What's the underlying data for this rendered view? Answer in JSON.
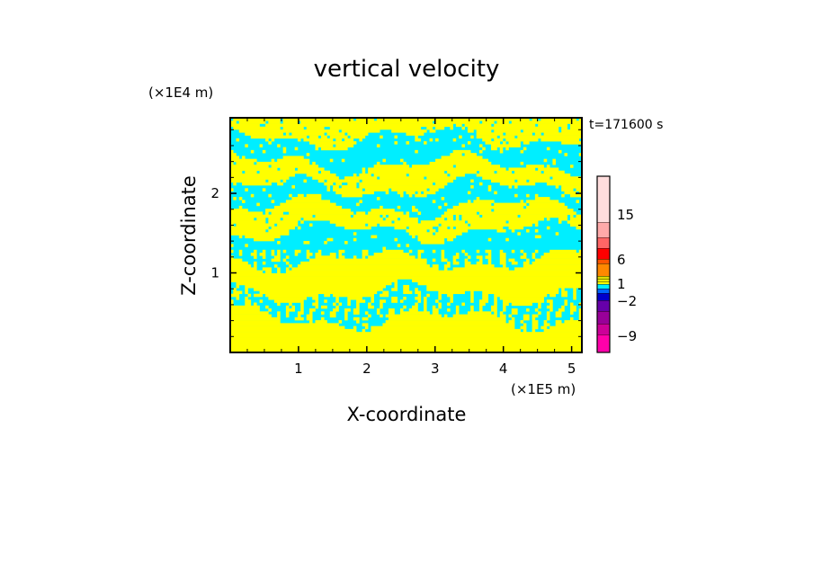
{
  "chart_data": {
    "type": "heatmap",
    "title": "vertical velocity",
    "xlabel": "X-coordinate",
    "ylabel": "Z-coordinate",
    "x_unit": "(×1E5 m)",
    "y_unit": "(×1E4 m)",
    "time_label": "t=171600 s",
    "xlim": [
      0,
      5.15
    ],
    "ylim": [
      0,
      2.95
    ],
    "x_ticks": [
      1,
      2,
      3,
      4,
      5
    ],
    "y_ticks": [
      1,
      2
    ],
    "legend": {
      "placement": "right",
      "tick_labels": [
        "15",
        "6",
        "1",
        "−2",
        "−9"
      ],
      "colors": [
        "#ff00aa",
        "#cc0099",
        "#990099",
        "#6600aa",
        "#0000cc",
        "#0066ff",
        "#00eeff",
        "#ffff00",
        "#eeee00",
        "#dddd00",
        "#ff8800",
        "#ff5500",
        "#ff0000",
        "#ff6666",
        "#ffaaaa",
        "#ffdddd"
      ]
    },
    "field_colors": {
      "positive": "#ffff00",
      "negative": "#00eeff"
    },
    "bands": [
      {
        "z": 0.28,
        "sign": "positive"
      },
      {
        "z": 0.55,
        "sign": "negative"
      },
      {
        "z": 0.95,
        "sign": "positive"
      },
      {
        "z": 1.35,
        "sign": "negative"
      },
      {
        "z": 1.7,
        "sign": "positive"
      },
      {
        "z": 1.95,
        "sign": "negative"
      },
      {
        "z": 2.2,
        "sign": "positive"
      },
      {
        "z": 2.55,
        "sign": "negative"
      },
      {
        "z": 2.85,
        "sign": "positive"
      }
    ]
  }
}
